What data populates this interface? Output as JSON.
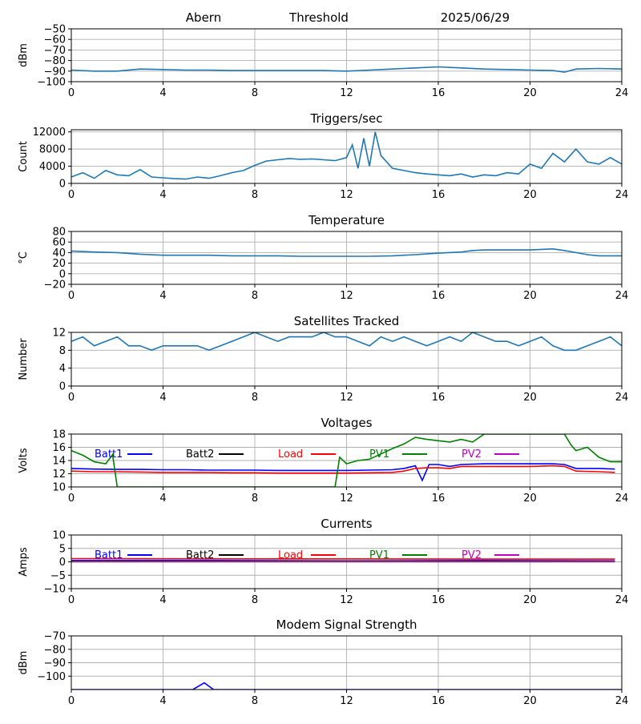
{
  "header": {
    "station": "Abern",
    "mode": "Threshold",
    "date": "2025/06/29"
  },
  "chart_data": [
    {
      "type": "line",
      "title": "",
      "xlabel": "",
      "ylabel": "dBm",
      "xlim": [
        0,
        24
      ],
      "ylim": [
        -100,
        -50
      ],
      "xticks": [
        0,
        4,
        8,
        12,
        16,
        20,
        24
      ],
      "yticks": [
        -100,
        -90,
        -80,
        -70,
        -60,
        -50
      ],
      "grid": true,
      "color": "#1f77b4",
      "series": [
        {
          "x": [
            0,
            1,
            2,
            3,
            4,
            5,
            6,
            7,
            8,
            9,
            10,
            11,
            12,
            13,
            14,
            15,
            16,
            17,
            18,
            19,
            20,
            21,
            21.5,
            22,
            23,
            24
          ],
          "y": [
            -89,
            -90,
            -90,
            -88,
            -88.5,
            -89,
            -89,
            -89.5,
            -89.5,
            -89.5,
            -89.5,
            -89.5,
            -90,
            -89,
            -88,
            -87,
            -86,
            -87,
            -88,
            -88.5,
            -89,
            -89.5,
            -91,
            -88,
            -87.5,
            -88
          ]
        }
      ]
    },
    {
      "type": "line",
      "title": "Triggers/sec",
      "xlabel": "",
      "ylabel": "Count",
      "xlim": [
        0,
        24
      ],
      "ylim": [
        0,
        12500
      ],
      "xticks": [
        0,
        4,
        8,
        12,
        16,
        20,
        24
      ],
      "yticks": [
        0,
        4000,
        8000,
        12000
      ],
      "grid": true,
      "color": "#1f77b4",
      "series": [
        {
          "x": [
            0,
            0.5,
            1,
            1.5,
            2,
            2.5,
            3,
            3.5,
            4,
            4.5,
            5,
            5.5,
            6,
            6.5,
            7,
            7.5,
            8,
            8.5,
            9,
            9.5,
            10,
            10.5,
            11,
            11.5,
            12,
            12.25,
            12.5,
            12.75,
            13,
            13.25,
            13.5,
            14,
            14.5,
            15,
            15.5,
            16,
            16.5,
            17,
            17.5,
            18,
            18.5,
            19,
            19.5,
            20,
            20.5,
            21,
            21.5,
            22,
            22.5,
            23,
            23.5,
            24
          ],
          "y": [
            1500,
            2500,
            1200,
            3000,
            2000,
            1800,
            3200,
            1500,
            1300,
            1100,
            1000,
            1500,
            1200,
            1800,
            2500,
            3000,
            4200,
            5200,
            5500,
            5800,
            5600,
            5700,
            5500,
            5300,
            6000,
            9000,
            3500,
            10500,
            4000,
            12000,
            6500,
            3500,
            3000,
            2500,
            2200,
            2000,
            1800,
            2200,
            1500,
            2000,
            1800,
            2500,
            2200,
            4500,
            3500,
            7000,
            5000,
            8000,
            5000,
            4500,
            6000,
            4500
          ]
        }
      ]
    },
    {
      "type": "line",
      "title": "Temperature",
      "xlabel": "",
      "ylabel": "°C",
      "xlim": [
        0,
        24
      ],
      "ylim": [
        -20,
        80
      ],
      "xticks": [
        0,
        4,
        8,
        12,
        16,
        20,
        24
      ],
      "yticks": [
        -20,
        0,
        20,
        40,
        60,
        80
      ],
      "grid": true,
      "color": "#1f77b4",
      "series": [
        {
          "x": [
            0,
            1,
            2,
            3,
            4,
            5,
            6,
            7,
            8,
            9,
            10,
            11,
            12,
            13,
            14,
            15,
            16,
            17,
            17.5,
            18,
            19,
            20,
            20.5,
            21,
            21.5,
            22,
            22.5,
            23,
            24
          ],
          "y": [
            43,
            41,
            40,
            37,
            35,
            35,
            35,
            34,
            34,
            34,
            33,
            33,
            33,
            33,
            34,
            36,
            39,
            41,
            44,
            45,
            45,
            45,
            46,
            47,
            44,
            40,
            36,
            34,
            34
          ]
        }
      ]
    },
    {
      "type": "line",
      "title": "Satellites Tracked",
      "xlabel": "",
      "ylabel": "Number",
      "xlim": [
        0,
        24
      ],
      "ylim": [
        0,
        12
      ],
      "xticks": [
        0,
        4,
        8,
        12,
        16,
        20,
        24
      ],
      "yticks": [
        0,
        4,
        8,
        12
      ],
      "grid": true,
      "color": "#1f77b4",
      "series": [
        {
          "x": [
            0,
            0.5,
            1,
            1.5,
            2,
            2.5,
            3,
            3.5,
            4,
            4.5,
            5,
            5.5,
            6,
            6.5,
            7,
            7.5,
            8,
            8.5,
            9,
            9.5,
            10,
            10.5,
            11,
            11.5,
            12,
            12.5,
            13,
            13.5,
            14,
            14.5,
            15,
            15.5,
            16,
            16.5,
            17,
            17.5,
            18,
            18.5,
            19,
            19.5,
            20,
            20.5,
            21,
            21.5,
            22,
            22.5,
            23,
            23.5,
            24
          ],
          "y": [
            10,
            11,
            9,
            10,
            11,
            9,
            9,
            8,
            9,
            9,
            9,
            9,
            8,
            9,
            10,
            11,
            12,
            11,
            10,
            11,
            11,
            11,
            12,
            11,
            11,
            10,
            9,
            11,
            10,
            11,
            10,
            9,
            10,
            11,
            10,
            12,
            11,
            10,
            10,
            9,
            10,
            11,
            9,
            8,
            8,
            9,
            10,
            11,
            9
          ]
        }
      ]
    },
    {
      "type": "line",
      "title": "Voltages",
      "xlabel": "",
      "ylabel": "Volts",
      "xlim": [
        0,
        24
      ],
      "ylim": [
        10,
        18
      ],
      "xticks": [
        0,
        4,
        8,
        12,
        16,
        20,
        24
      ],
      "yticks": [
        10,
        12,
        14,
        16,
        18
      ],
      "grid": true,
      "legend": "top",
      "series": [
        {
          "name": "Batt1",
          "color": "#0000ff",
          "x": [
            0,
            1,
            2,
            3,
            4,
            5,
            6,
            7,
            8,
            9,
            10,
            11,
            12,
            13,
            14,
            14.5,
            15,
            15.3,
            15.6,
            16,
            16.5,
            17,
            18,
            19,
            20,
            21,
            21.5,
            22,
            23,
            23.7
          ],
          "y": [
            12.8,
            12.7,
            12.65,
            12.65,
            12.6,
            12.6,
            12.55,
            12.55,
            12.55,
            12.5,
            12.5,
            12.5,
            12.5,
            12.55,
            12.6,
            12.8,
            13.2,
            11,
            13.4,
            13.4,
            13.1,
            13.4,
            13.5,
            13.5,
            13.5,
            13.5,
            13.4,
            12.8,
            12.8,
            12.7
          ]
        },
        {
          "name": "Batt2",
          "color": "#000000",
          "x": [],
          "y": []
        },
        {
          "name": "Load",
          "color": "#ff0000",
          "x": [
            0,
            1,
            2,
            3,
            4,
            5,
            6,
            7,
            8,
            9,
            10,
            11,
            12,
            13,
            14,
            14.5,
            15,
            15.5,
            16,
            16.5,
            17,
            18,
            19,
            20,
            21,
            21.5,
            22,
            23,
            23.7
          ],
          "y": [
            12.4,
            12.3,
            12.3,
            12.25,
            12.2,
            12.2,
            12.2,
            12.15,
            12.15,
            12.1,
            12.1,
            12.1,
            12.1,
            12.15,
            12.2,
            12.4,
            12.8,
            12.9,
            12.9,
            12.8,
            13.1,
            13.1,
            13.1,
            13.1,
            13.2,
            13.1,
            12.4,
            12.3,
            12.2
          ]
        },
        {
          "name": "PV1",
          "color": "#008000",
          "x": [
            0,
            0.5,
            1,
            1.5,
            1.8,
            2,
            11.5,
            11.7,
            12,
            12.5,
            13,
            13.5,
            14,
            14.5,
            15,
            15.5,
            16,
            16.5,
            17,
            17.5,
            18,
            21.5,
            21.8,
            22,
            22.5,
            23,
            23.5,
            24
          ],
          "y": [
            15.5,
            14.8,
            13.8,
            13.5,
            14.9,
            10,
            10,
            14.5,
            13.5,
            14,
            14.2,
            15,
            15.8,
            16.5,
            17.5,
            17.2,
            17,
            16.8,
            17.2,
            16.8,
            18,
            18,
            16.3,
            15.5,
            16,
            14.5,
            13.8,
            13.8
          ]
        },
        {
          "name": "PV2",
          "color": "#bf00bf",
          "x": [],
          "y": []
        }
      ]
    },
    {
      "type": "line",
      "title": "Currents",
      "xlabel": "",
      "ylabel": "Amps",
      "xlim": [
        0,
        24
      ],
      "ylim": [
        -10,
        10
      ],
      "xticks": [
        0,
        4,
        8,
        12,
        16,
        20,
        24
      ],
      "yticks": [
        -10,
        -5,
        0,
        5,
        10
      ],
      "grid": true,
      "legend": "top",
      "series": [
        {
          "name": "Batt1",
          "color": "#0000ff",
          "x": [
            0,
            6,
            12,
            18,
            23.7
          ],
          "y": [
            0.5,
            0.5,
            0.4,
            0.5,
            0.4
          ]
        },
        {
          "name": "Batt2",
          "color": "#000000",
          "x": [],
          "y": []
        },
        {
          "name": "Load",
          "color": "#ff0000",
          "x": [
            0,
            6,
            12,
            18,
            23.7
          ],
          "y": [
            1.2,
            1.1,
            1.1,
            1.0,
            1.0
          ]
        },
        {
          "name": "PV1",
          "color": "#008000",
          "x": [
            0,
            6,
            12,
            18,
            23.7
          ],
          "y": [
            0.2,
            0.2,
            0.3,
            0.2,
            0.2
          ]
        },
        {
          "name": "PV2",
          "color": "#bf00bf",
          "x": [
            0,
            6,
            12,
            18,
            23.7
          ],
          "y": [
            0,
            0,
            0,
            0,
            0
          ]
        }
      ]
    },
    {
      "type": "line",
      "title": "Modem Signal Strength",
      "xlabel": "",
      "ylabel": "dBm",
      "xlim": [
        0,
        24
      ],
      "ylim": [
        -110,
        -70
      ],
      "xticks": [
        0,
        4,
        8,
        12,
        16,
        20,
        24
      ],
      "yticks": [
        -100,
        -90,
        -80,
        -70
      ],
      "grid": true,
      "color": "#0000ff",
      "series": [
        {
          "x": [
            0,
            5.3,
            5.8,
            6.2,
            24
          ],
          "y": [
            -110,
            -110,
            -105,
            -110,
            -110
          ]
        }
      ]
    }
  ]
}
